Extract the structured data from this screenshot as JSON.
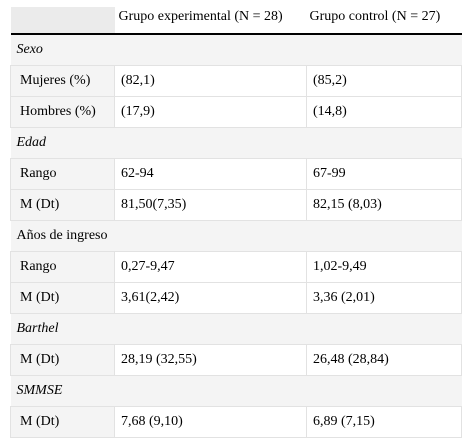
{
  "table": {
    "headers": [
      "",
      "Grupo experimental (N = 28)",
      "Grupo control (N = 27)"
    ],
    "sections": [
      {
        "title": "Sexo",
        "italic": true,
        "rows": [
          {
            "label": "Mujeres (%)",
            "experimental": "(82,1)",
            "control": "(85,2)"
          },
          {
            "label": "Hombres (%)",
            "experimental": "(17,9)",
            "control": "(14,8)"
          }
        ]
      },
      {
        "title": "Edad",
        "italic": true,
        "rows": [
          {
            "label": "Rango",
            "experimental": "62-94",
            "control": "67-99"
          },
          {
            "label": "M (Dt)",
            "experimental": "81,50(7,35)",
            "control": "82,15 (8,03)"
          }
        ]
      },
      {
        "title": "Años de ingreso",
        "italic": false,
        "rows": [
          {
            "label": "Rango",
            "experimental": "0,27-9,47",
            "control": "1,02-9,49"
          },
          {
            "label": "M (Dt)",
            "experimental": "3,61(2,42)",
            "control": "3,36 (2,01)"
          }
        ]
      },
      {
        "title": "Barthel",
        "italic": true,
        "rows": [
          {
            "label": "M (Dt)",
            "experimental": "28,19 (32,55)",
            "control": "26,48 (28,84)"
          }
        ]
      },
      {
        "title": "SMMSE",
        "italic": true,
        "rows": [
          {
            "label": "M (Dt)",
            "experimental": "7,68 (9,10)",
            "control": "6,89 (7,15)"
          }
        ]
      }
    ]
  }
}
